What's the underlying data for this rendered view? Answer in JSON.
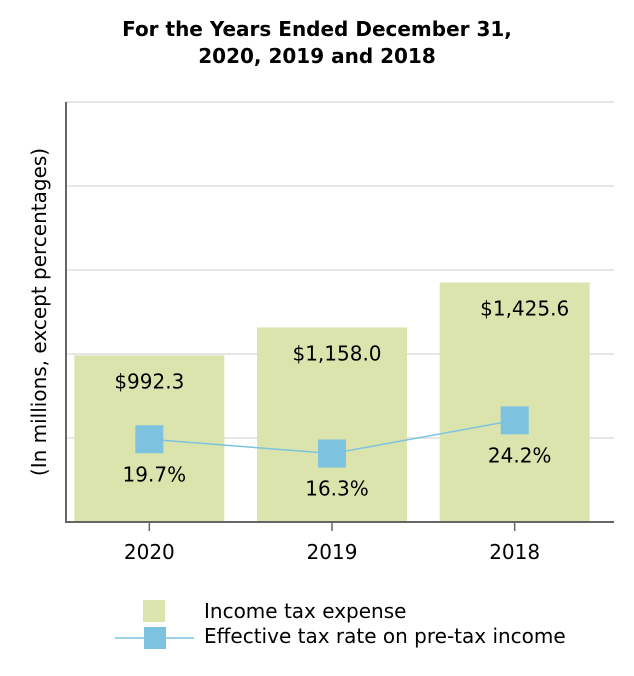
{
  "chart_data": {
    "type": "bar+line",
    "title_lines": [
      "For the Years Ended December 31,",
      "2020, 2019 and 2018"
    ],
    "ylabel": "(In millions, except percentages)",
    "categories": [
      "2020",
      "2019",
      "2018"
    ],
    "ylim": [
      0,
      2500
    ],
    "y2lim": [
      0,
      100
    ],
    "grid": true,
    "legend_placement": "bottom",
    "series": [
      {
        "name": "Income tax expense",
        "type": "bar",
        "values": [
          992.3,
          1158.0,
          1425.6
        ],
        "labels": [
          "$992.3",
          "$1,158.0",
          "$1,425.6"
        ],
        "color": "#dbe4ad"
      },
      {
        "name": "Effective tax rate on pre-tax income",
        "type": "line",
        "values": [
          19.7,
          16.3,
          24.2
        ],
        "labels": [
          "19.7%",
          "16.3%",
          "24.2%"
        ],
        "color": "#7dc3e0"
      }
    ]
  }
}
